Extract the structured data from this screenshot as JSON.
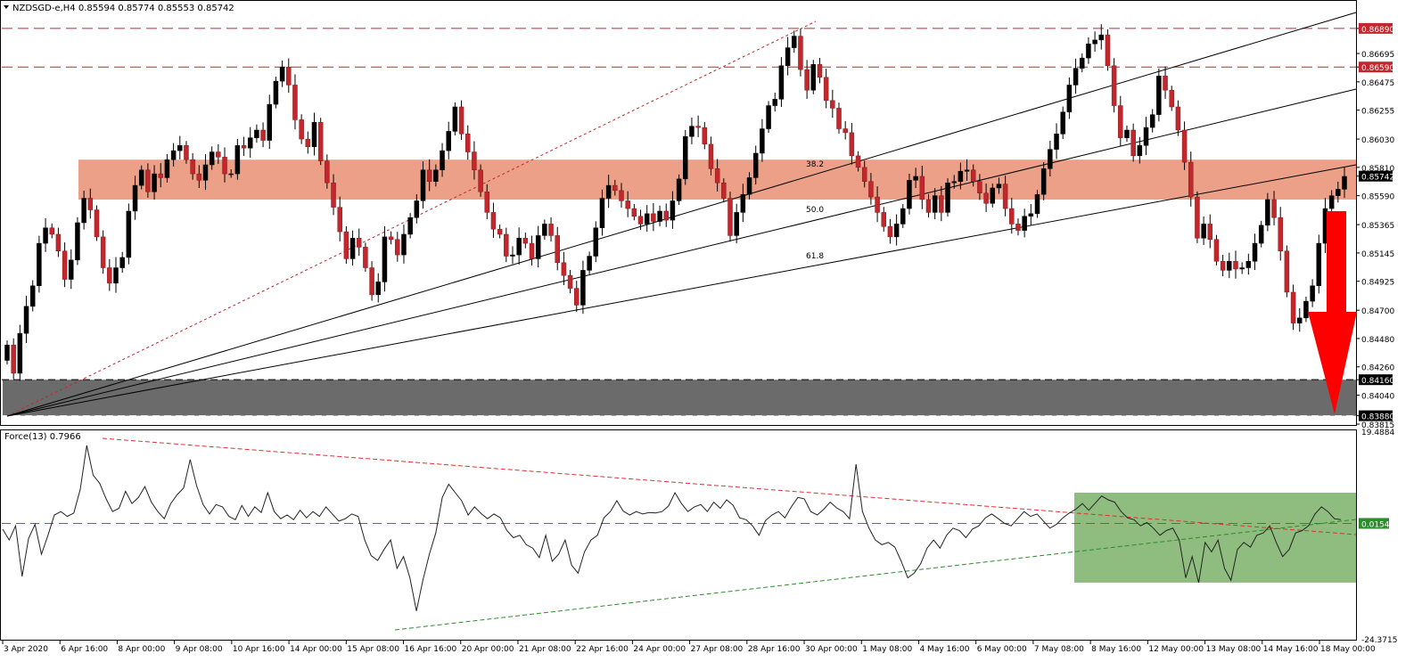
{
  "chart_data": [
    {
      "type": "candlestick",
      "title": "NZDSGD-e,H4  0.85594 0.85774 0.85553 0.85742",
      "symbol": "NZDSGD-e,H4",
      "ohlc_header": {
        "open": "0.85594",
        "high": "0.85774",
        "low": "0.85553",
        "close": "0.85742"
      },
      "ylim": [
        0.83815,
        0.8709
      ],
      "y_ticks": [
        "0.86890",
        "0.86695",
        "0.86590",
        "0.86475",
        "0.86255",
        "0.86030",
        "0.85810",
        "0.85742",
        "0.85590",
        "0.85365",
        "0.85145",
        "0.84925",
        "0.84700",
        "0.84480",
        "0.84260",
        "0.84160",
        "0.84040",
        "0.83880",
        "0.83815"
      ],
      "level_labels": [
        {
          "value": "0.86890",
          "color": "#c1272d"
        },
        {
          "value": "0.86590",
          "color": "#c1272d"
        },
        {
          "value": "0.85742",
          "color": "#000000"
        },
        {
          "value": "0.84160",
          "color": "#000000"
        },
        {
          "value": "0.83880",
          "color": "#000000"
        }
      ],
      "resistance_levels": [
        0.8689,
        0.8659
      ],
      "resistance_zone": [
        0.8556,
        0.8587
      ],
      "support_zone": [
        0.8388,
        0.8416
      ],
      "fib_labels": [
        "38.2",
        "50.0",
        "61.8"
      ],
      "annotation": "red-down-arrow",
      "x_labels": [
        "3 Apr 2020",
        "6 Apr 16:00",
        "8 Apr 00:00",
        "9 Apr 08:00",
        "10 Apr 16:00",
        "14 Apr 00:00",
        "15 Apr 08:00",
        "16 Apr 16:00",
        "20 Apr 00:00",
        "21 Apr 08:00",
        "22 Apr 16:00",
        "24 Apr 00:00",
        "27 Apr 08:00",
        "28 Apr 16:00",
        "30 Apr 00:00",
        "1 May 08:00",
        "4 May 16:00",
        "6 May 00:00",
        "7 May 08:00",
        "8 May 16:00",
        "12 May 00:00",
        "13 May 08:00",
        "14 May 16:00",
        "18 May 00:00"
      ],
      "closes": [
        0.8443,
        0.8421,
        0.8452,
        0.8473,
        0.8489,
        0.8522,
        0.8534,
        0.8529,
        0.8516,
        0.8494,
        0.8509,
        0.8538,
        0.8557,
        0.8548,
        0.8527,
        0.8503,
        0.8491,
        0.8503,
        0.8511,
        0.8547,
        0.8567,
        0.8579,
        0.8562,
        0.8576,
        0.8573,
        0.8587,
        0.8594,
        0.8598,
        0.8587,
        0.8576,
        0.8571,
        0.8583,
        0.8593,
        0.8589,
        0.8576,
        0.8576,
        0.8598,
        0.8596,
        0.8604,
        0.861,
        0.8602,
        0.863,
        0.8648,
        0.8659,
        0.8645,
        0.8618,
        0.8603,
        0.8597,
        0.8616,
        0.8586,
        0.8569,
        0.855,
        0.8531,
        0.851,
        0.8526,
        0.8519,
        0.8503,
        0.8482,
        0.8492,
        0.8527,
        0.8525,
        0.8513,
        0.8529,
        0.8542,
        0.8555,
        0.8579,
        0.857,
        0.8579,
        0.8594,
        0.8609,
        0.8628,
        0.8607,
        0.8593,
        0.8579,
        0.8562,
        0.8546,
        0.8533,
        0.8529,
        0.8512,
        0.8513,
        0.8526,
        0.8522,
        0.851,
        0.8528,
        0.8537,
        0.8528,
        0.8507,
        0.8497,
        0.8487,
        0.8474,
        0.8501,
        0.8512,
        0.8534,
        0.8557,
        0.8567,
        0.8563,
        0.8555,
        0.8549,
        0.8543,
        0.8537,
        0.8545,
        0.8539,
        0.8547,
        0.854,
        0.8555,
        0.8572,
        0.8605,
        0.8613,
        0.8612,
        0.8599,
        0.858,
        0.8569,
        0.8557,
        0.8528,
        0.8546,
        0.856,
        0.8573,
        0.8592,
        0.8611,
        0.8629,
        0.8634,
        0.866,
        0.8674,
        0.8683,
        0.8657,
        0.8641,
        0.8661,
        0.8651,
        0.8633,
        0.8627,
        0.8611,
        0.8608,
        0.859,
        0.8581,
        0.857,
        0.8558,
        0.8546,
        0.8535,
        0.8527,
        0.8537,
        0.8549,
        0.8571,
        0.8574,
        0.8556,
        0.8546,
        0.8559,
        0.8546,
        0.8569,
        0.857,
        0.8578,
        0.8579,
        0.857,
        0.8561,
        0.8553,
        0.8565,
        0.8568,
        0.8549,
        0.8537,
        0.8532,
        0.8543,
        0.8545,
        0.856,
        0.858,
        0.8595,
        0.8607,
        0.8624,
        0.8645,
        0.8658,
        0.8666,
        0.8677,
        0.868,
        0.8684,
        0.866,
        0.8629,
        0.8604,
        0.861,
        0.859,
        0.8598,
        0.8612,
        0.8622,
        0.8652,
        0.8641,
        0.8628,
        0.861,
        0.8585,
        0.8558,
        0.8526,
        0.8537,
        0.8525,
        0.8508,
        0.8501,
        0.8508,
        0.8502,
        0.8503,
        0.8508,
        0.8522,
        0.8536,
        0.8556,
        0.8542,
        0.8516,
        0.8484,
        0.846,
        0.8464,
        0.8477,
        0.8489,
        0.8522,
        0.8549,
        0.8559,
        0.8564,
        0.8574
      ],
      "force_index": {
        "label": "Force(13) 0.7966",
        "name": "Force(13)",
        "current": 0.7966,
        "ylim": [
          -24.3715,
          19.4884
        ],
        "y_ticks": [
          "19.4884",
          "0.0154",
          "-24.3715"
        ],
        "zero_label": "0.0154",
        "highlight_zone": [
          -12.5,
          6.5
        ],
        "values": [
          -1.2,
          -3.5,
          -0.5,
          -11.2,
          -3.2,
          -0.2,
          -6.5,
          -2.5,
          1.8,
          2.5,
          1.5,
          2.2,
          7.2,
          16.5,
          10.2,
          8.5,
          5.2,
          2.5,
          3.2,
          6.8,
          4.2,
          5.5,
          7.8,
          4.5,
          2.5,
          1.0,
          4.2,
          6.1,
          7.5,
          13.5,
          8.0,
          4.0,
          2.0,
          4.0,
          3.5,
          1.5,
          0.8,
          3.8,
          1.5,
          3.5,
          2.3,
          6.5,
          2.5,
          1.0,
          1.8,
          0.8,
          2.8,
          1.2,
          2.5,
          1.5,
          3.5,
          2.0,
          0.5,
          1.0,
          2.0,
          1.5,
          -3.5,
          -6.8,
          -7.8,
          -5.5,
          -3.5,
          -9.5,
          -7.0,
          -11.5,
          -18.5,
          -12.0,
          -6.5,
          -2.0,
          5.5,
          8.3,
          6.5,
          4.8,
          1.8,
          3.5,
          2.1,
          1.0,
          2.0,
          1.2,
          -1.5,
          -3.0,
          -2.5,
          -4.5,
          -5.2,
          -7.2,
          -2.5,
          -8.0,
          -6.5,
          -3.5,
          -8.8,
          -10.5,
          -6.0,
          -3.5,
          -2.5,
          1.2,
          2.5,
          4.8,
          2.6,
          1.8,
          2.5,
          2.0,
          2.3,
          2.2,
          2.5,
          3.7,
          6.5,
          4.2,
          2.5,
          3.5,
          4.0,
          2.5,
          4.5,
          3.2,
          5.0,
          3.8,
          1.2,
          0.8,
          -0.5,
          -2.5,
          0.6,
          1.8,
          2.5,
          1.2,
          3.5,
          5.5,
          5.2,
          2.5,
          1.8,
          3.0,
          4.5,
          3.3,
          2.5,
          1.0,
          12.5,
          2.5,
          -1.0,
          -3.5,
          -4.5,
          -4.0,
          -5.0,
          -8.0,
          -11.5,
          -10.5,
          -8.5,
          -5.2,
          -3.5,
          -5.2,
          -2.5,
          -1.0,
          -1.5,
          -3.0,
          -1.2,
          -0.5,
          1.2,
          2.0,
          1.0,
          0.0,
          -0.5,
          1.0,
          2.5,
          1.5,
          2.0,
          0.5,
          -1.0,
          -0.2,
          1.2,
          2.2,
          3.0,
          4.2,
          2.8,
          4.3,
          5.8,
          5.0,
          4.5,
          2.5,
          1.2,
          0.8,
          -0.5,
          0.2,
          -1.0,
          -2.5,
          -1.5,
          -1.0,
          -3.5,
          -11.5,
          -7.0,
          -12.5,
          -4.0,
          -6.0,
          -3.5,
          -9.5,
          -12.0,
          -5.5,
          -4.0,
          -5.0,
          -2.5,
          -2.0,
          -0.5,
          -4.0,
          -7.0,
          -5.5,
          -2.0,
          -1.5,
          -0.5,
          2.0,
          3.5,
          2.5,
          1.0,
          0.8
        ]
      }
    }
  ]
}
